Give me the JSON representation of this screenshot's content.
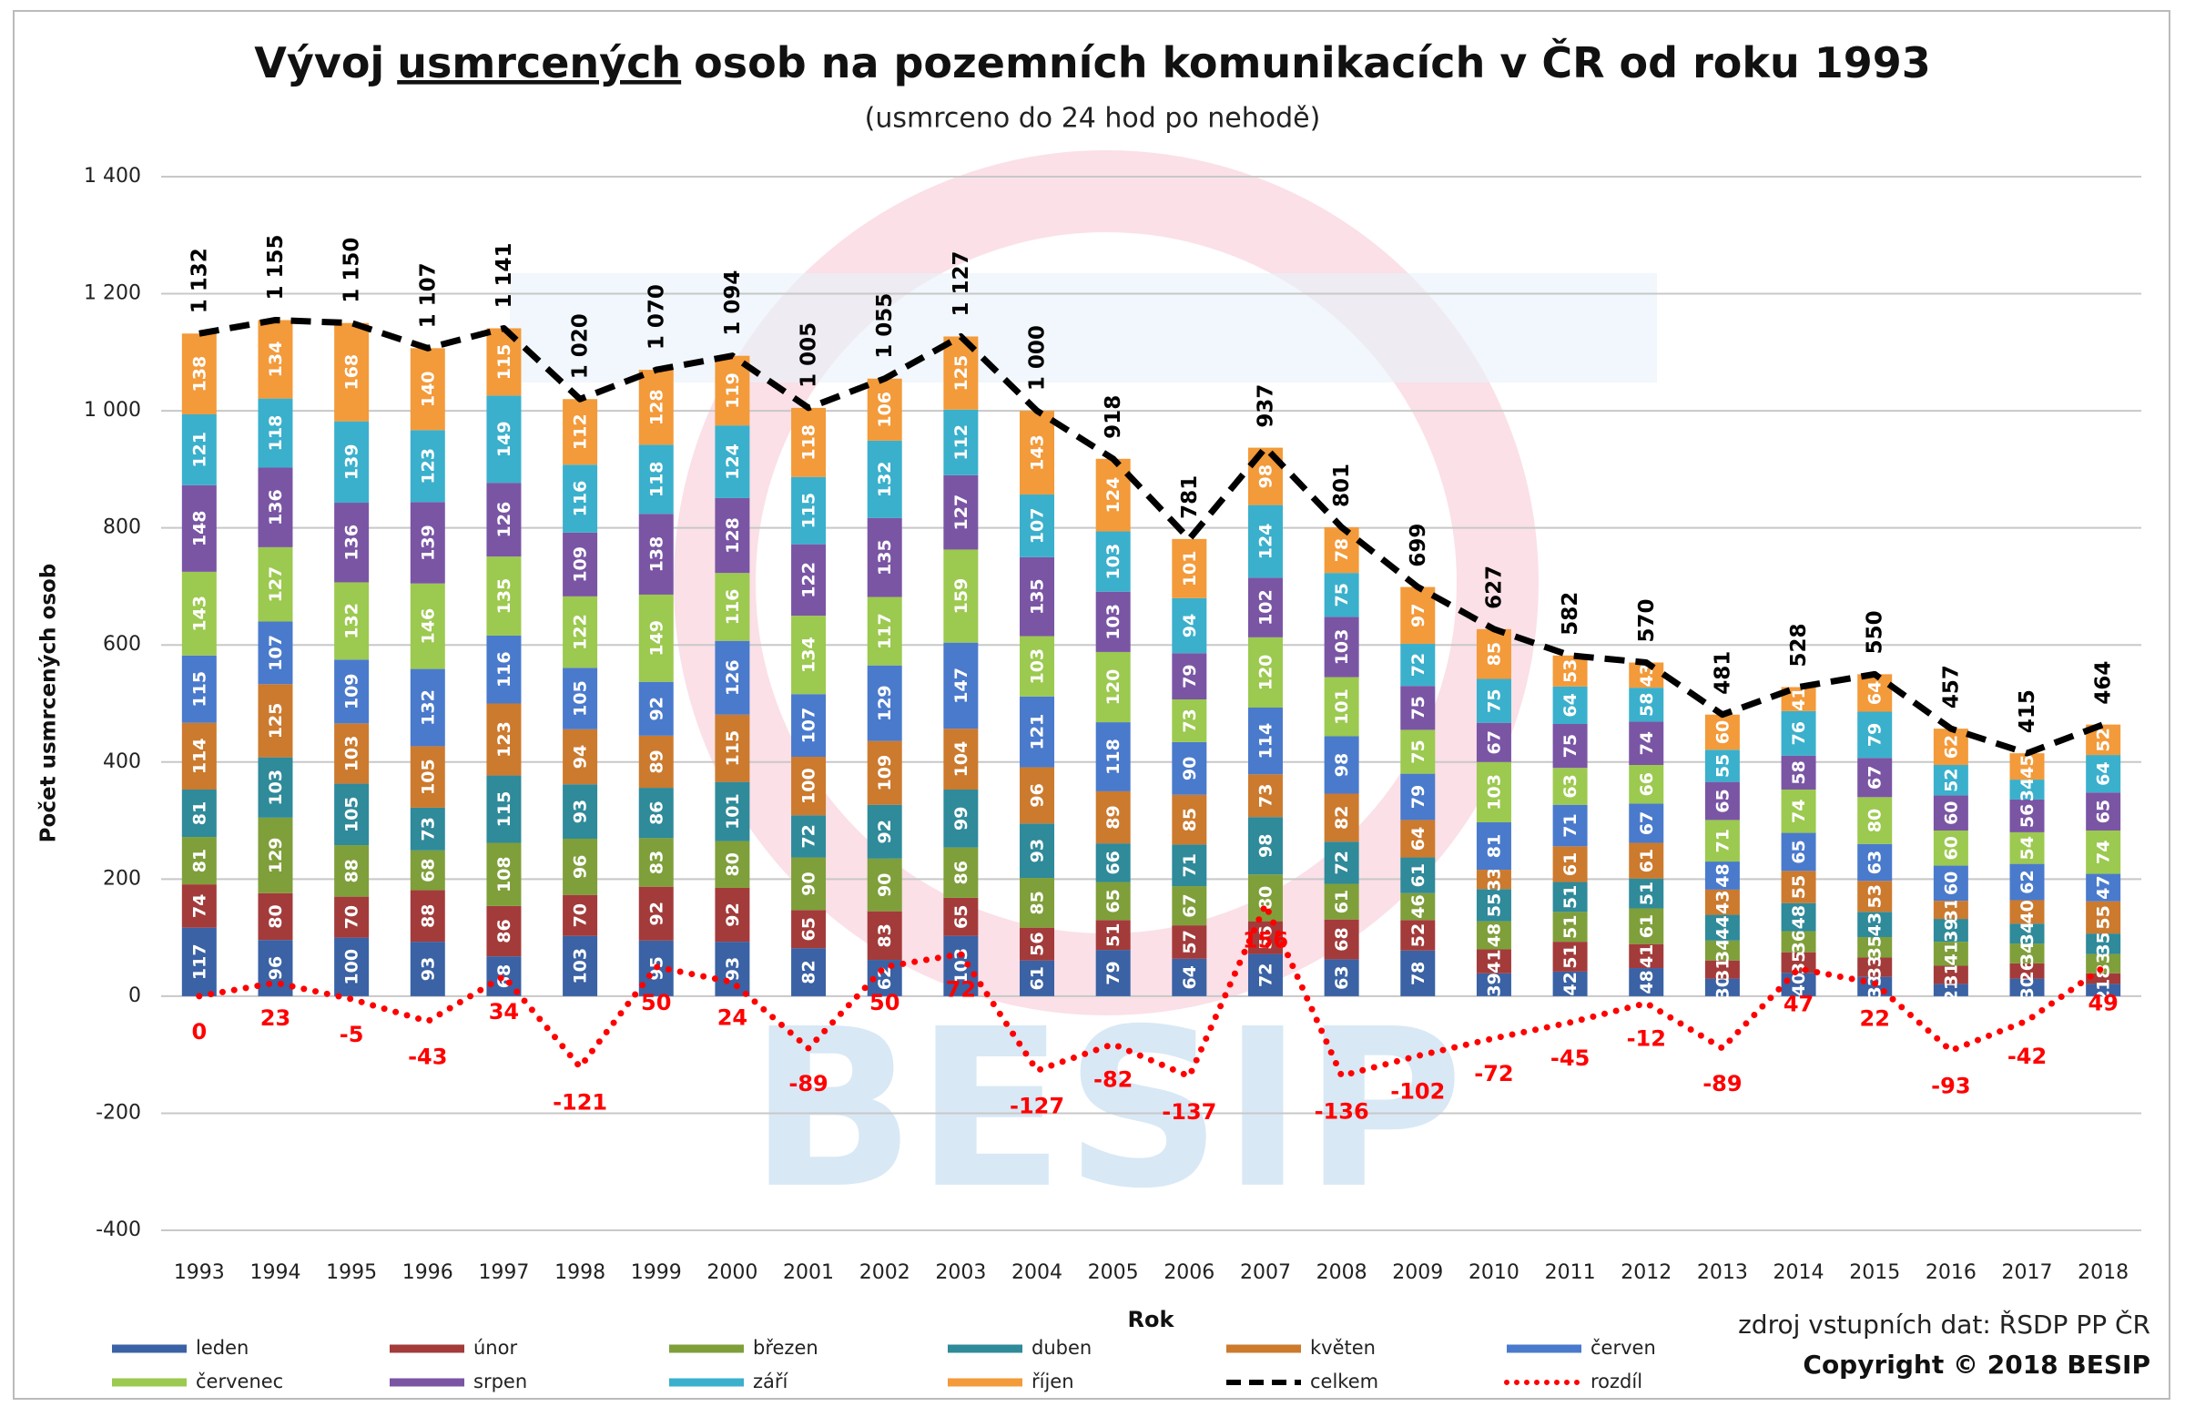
{
  "chart_data": {
    "type": "bar",
    "stacked": true,
    "title": [
      "Vývoj",
      "usmrcených",
      "osob na pozemních komunikacích v ČR od roku 1993"
    ],
    "underlined_title_part": 1,
    "subtitle": "(usmrceno do 24 hod po nehodě)",
    "y_label": "Počet usmrcených osob",
    "x_label": "Rok",
    "source": "zdroj vstupních dat: ŘSDP PP ČR",
    "copyright": "Copyright © 2018 BESIP",
    "watermark": "BESIP",
    "grid": true,
    "ylim": [
      -400,
      1400
    ],
    "yticks": [
      {
        "value": 1400,
        "label": "1 400"
      },
      {
        "value": 1200,
        "label": "1 200"
      },
      {
        "value": 1000,
        "label": "1 000"
      },
      800,
      600,
      400,
      200,
      0,
      -200,
      -400
    ],
    "legend": "bottom",
    "categories": [
      "1993",
      "1994",
      "1995",
      "1996",
      "1997",
      "1998",
      "1999",
      "2000",
      "2001",
      "2002",
      "2003",
      "2004",
      "2005",
      "2006",
      "2007",
      "2008",
      "2009",
      "2010",
      "2011",
      "2012",
      "2013",
      "2014",
      "2015",
      "2016",
      "2017",
      "2018"
    ],
    "series": [
      {
        "name": "leden",
        "type": "bar",
        "color": "#3a62a4",
        "values": [
          117,
          96,
          100,
          93,
          68,
          103,
          95,
          93,
          82,
          62,
          103,
          61,
          79,
          64,
          72,
          63,
          78,
          39,
          42,
          48,
          30,
          40,
          33,
          21,
          30,
          21
        ]
      },
      {
        "name": "únor",
        "type": "bar",
        "color": "#a33b3b",
        "values": [
          74,
          80,
          70,
          88,
          86,
          70,
          92,
          92,
          65,
          83,
          65,
          56,
          51,
          57,
          56,
          68,
          52,
          41,
          51,
          41,
          31,
          35,
          33,
          31,
          26,
          18
        ]
      },
      {
        "name": "březen",
        "type": "bar",
        "color": "#7f9f3a",
        "values": [
          81,
          129,
          88,
          68,
          108,
          96,
          83,
          80,
          90,
          90,
          86,
          85,
          65,
          67,
          80,
          61,
          46,
          48,
          51,
          61,
          34,
          36,
          35,
          41,
          34,
          33
        ]
      },
      {
        "name": "duben",
        "type": "bar",
        "color": "#2f8a9a",
        "values": [
          81,
          103,
          105,
          73,
          115,
          93,
          86,
          101,
          72,
          92,
          99,
          93,
          66,
          71,
          98,
          72,
          61,
          55,
          51,
          51,
          44,
          48,
          43,
          39,
          34,
          35
        ]
      },
      {
        "name": "květen",
        "type": "bar",
        "color": "#cc7a2e",
        "values": [
          114,
          125,
          103,
          105,
          123,
          94,
          89,
          115,
          100,
          109,
          104,
          96,
          89,
          85,
          73,
          82,
          64,
          33,
          61,
          61,
          43,
          55,
          53,
          31,
          40,
          55
        ]
      },
      {
        "name": "červen",
        "type": "bar",
        "color": "#4a7acc",
        "values": [
          115,
          107,
          109,
          132,
          116,
          105,
          92,
          126,
          107,
          129,
          147,
          121,
          118,
          90,
          114,
          98,
          79,
          81,
          71,
          67,
          48,
          65,
          63,
          60,
          62,
          47
        ]
      },
      {
        "name": "červenec",
        "type": "bar",
        "color": "#9cc94f",
        "values": [
          143,
          127,
          132,
          146,
          135,
          122,
          149,
          116,
          134,
          117,
          159,
          103,
          120,
          73,
          120,
          101,
          75,
          103,
          63,
          66,
          71,
          74,
          80,
          60,
          54,
          74
        ]
      },
      {
        "name": "srpen",
        "type": "bar",
        "color": "#7a55a4",
        "values": [
          148,
          136,
          136,
          139,
          126,
          109,
          138,
          128,
          122,
          135,
          127,
          135,
          103,
          79,
          102,
          103,
          75,
          67,
          75,
          74,
          65,
          58,
          67,
          60,
          56,
          65
        ]
      },
      {
        "name": "září",
        "type": "bar",
        "color": "#3ab0cc",
        "values": [
          121,
          118,
          139,
          123,
          149,
          116,
          118,
          124,
          115,
          132,
          112,
          107,
          103,
          94,
          124,
          75,
          72,
          75,
          64,
          58,
          55,
          76,
          79,
          52,
          34,
          64
        ]
      },
      {
        "name": "říjen",
        "type": "bar",
        "color": "#f39a3a",
        "values": [
          138,
          134,
          168,
          140,
          115,
          112,
          128,
          119,
          118,
          106,
          125,
          143,
          124,
          101,
          98,
          78,
          97,
          85,
          53,
          43,
          60,
          41,
          64,
          62,
          45,
          52
        ]
      },
      {
        "name": "celkem",
        "type": "line",
        "color": "#000000",
        "dash": "dashed",
        "values": [
          1132,
          1155,
          1150,
          1107,
          1141,
          1020,
          1070,
          1094,
          1005,
          1055,
          1127,
          1000,
          918,
          781,
          937,
          801,
          699,
          627,
          582,
          570,
          481,
          528,
          550,
          457,
          415,
          464
        ],
        "value_labels": [
          "1 132",
          "1 155",
          "1 150",
          "1 107",
          "1 141",
          "1 020",
          "1 070",
          "1 094",
          "1 005",
          "1 055",
          "1 127",
          "1 000",
          "918",
          "781",
          "937",
          "801",
          "699",
          "627",
          "582",
          "570",
          "481",
          "528",
          "550",
          "457",
          "415",
          "464"
        ]
      },
      {
        "name": "rozdíl",
        "type": "line",
        "color": "#ff0000",
        "dash": "dotted",
        "values": [
          0,
          23,
          -5,
          -43,
          34,
          -121,
          50,
          24,
          -89,
          50,
          72,
          -127,
          -82,
          -137,
          156,
          -136,
          -102,
          -72,
          -45,
          -12,
          -89,
          47,
          22,
          -93,
          -42,
          49
        ]
      }
    ]
  }
}
